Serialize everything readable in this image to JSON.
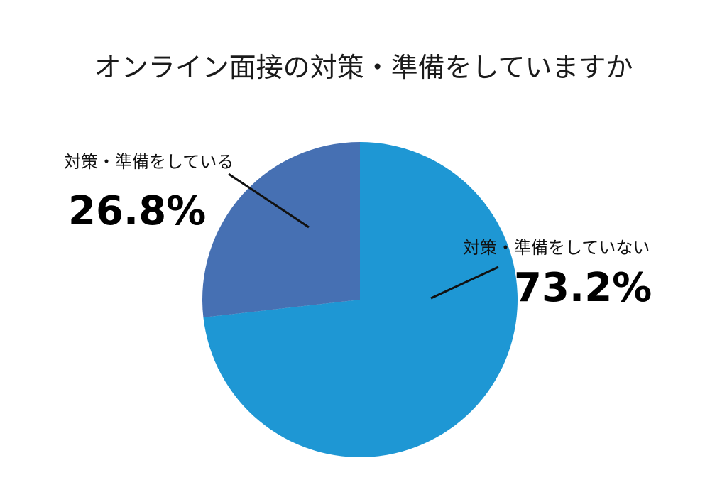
{
  "chart_data": {
    "type": "pie",
    "title": "オンライン面接の対策・準備をしていますか",
    "slices": [
      {
        "label": "対策・準備をしていない",
        "value": 73.2,
        "value_label": "73.2%",
        "color": "#1e97d4"
      },
      {
        "label": "対策・準備をしている",
        "value": 26.8,
        "value_label": "26.8%",
        "color": "#4670b3"
      }
    ],
    "start_angle_deg": 0,
    "direction": "clockwise",
    "legend": "none"
  }
}
